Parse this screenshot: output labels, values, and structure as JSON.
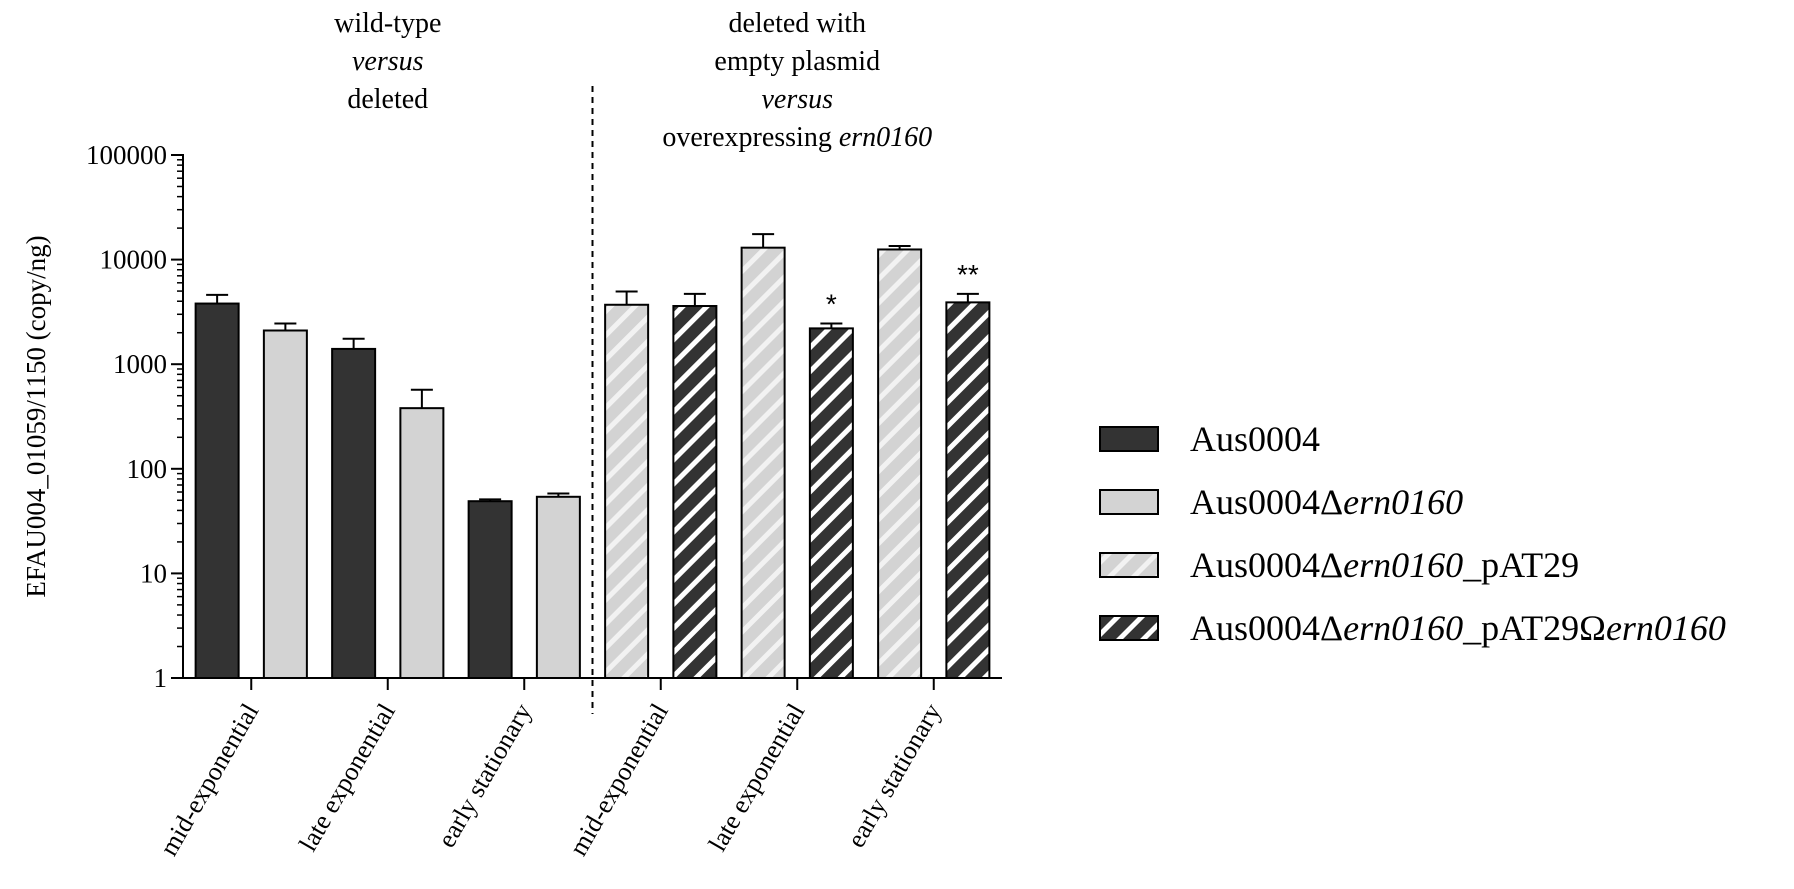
{
  "chart_data": {
    "type": "bar",
    "ylabel": "EFAU004_01059/1150 (copy/ng)",
    "yscale": "log",
    "ylim": [
      1,
      100000
    ],
    "y_ticks": [
      "1",
      "10",
      "100",
      "1000",
      "10000",
      "100000"
    ],
    "groups": [
      {
        "header_lines": [
          [
            {
              "t": "wild-type",
              "i": false
            }
          ],
          [
            {
              "t": "versus",
              "i": true
            }
          ],
          [
            {
              "t": "deleted",
              "i": false
            }
          ]
        ]
      },
      {
        "header_lines": [
          [
            {
              "t": "deleted with",
              "i": false
            }
          ],
          [
            {
              "t": "empty plasmid",
              "i": false
            }
          ],
          [
            {
              "t": "versus",
              "i": true
            }
          ],
          [
            {
              "t": "overexpressing ",
              "i": false
            },
            {
              "t": "ern0160",
              "i": true
            }
          ]
        ]
      }
    ],
    "categories": [
      "mid-exponential",
      "late exponential",
      "early stationary",
      "mid-exponential",
      "late exponential",
      "early stationary"
    ],
    "bars": [
      {
        "series": 0,
        "value": 3800,
        "error": 4600,
        "sig": ""
      },
      {
        "series": 1,
        "value": 2100,
        "error": 2450,
        "sig": ""
      },
      {
        "series": 0,
        "value": 1400,
        "error": 1750,
        "sig": ""
      },
      {
        "series": 1,
        "value": 380,
        "error": 570,
        "sig": ""
      },
      {
        "series": 0,
        "value": 49,
        "error": 51,
        "sig": ""
      },
      {
        "series": 1,
        "value": 54,
        "error": 58,
        "sig": ""
      },
      {
        "series": 2,
        "value": 3700,
        "error": 4950,
        "sig": ""
      },
      {
        "series": 3,
        "value": 3600,
        "error": 4700,
        "sig": ""
      },
      {
        "series": 2,
        "value": 13000,
        "error": 17500,
        "sig": ""
      },
      {
        "series": 3,
        "value": 2200,
        "error": 2450,
        "sig": "*"
      },
      {
        "series": 2,
        "value": 12500,
        "error": 13500,
        "sig": ""
      },
      {
        "series": 3,
        "value": 3900,
        "error": 4700,
        "sig": "**"
      }
    ],
    "series": [
      {
        "name": "Aus0004",
        "parts": [
          {
            "t": "Aus0004",
            "i": false
          }
        ],
        "fill": "#333333",
        "hatch": false
      },
      {
        "name": "Aus0004Δern0160",
        "parts": [
          {
            "t": "Aus0004Δ",
            "i": false
          },
          {
            "t": "ern0160",
            "i": true
          }
        ],
        "fill": "#d3d3d3",
        "hatch": false
      },
      {
        "name": "Aus0004Δern0160_pAT29",
        "parts": [
          {
            "t": "Aus0004Δ",
            "i": false
          },
          {
            "t": "ern0160",
            "i": true
          },
          {
            "t": "_pAT29",
            "i": false
          }
        ],
        "fill": "#d3d3d3",
        "hatch": true,
        "stripe": "#f2f2f2"
      },
      {
        "name": "Aus0004Δern0160_pAT29Ωern0160",
        "parts": [
          {
            "t": "Aus0004Δ",
            "i": false
          },
          {
            "t": "ern0160",
            "i": true
          },
          {
            "t": "_pAT29Ω",
            "i": false
          },
          {
            "t": "ern0160",
            "i": true
          }
        ],
        "fill": "#333333",
        "hatch": true,
        "stripe": "#ffffff"
      }
    ],
    "legend_position": "right",
    "grid": false,
    "divider": "dashed vertical line between group 1 and group 2"
  }
}
